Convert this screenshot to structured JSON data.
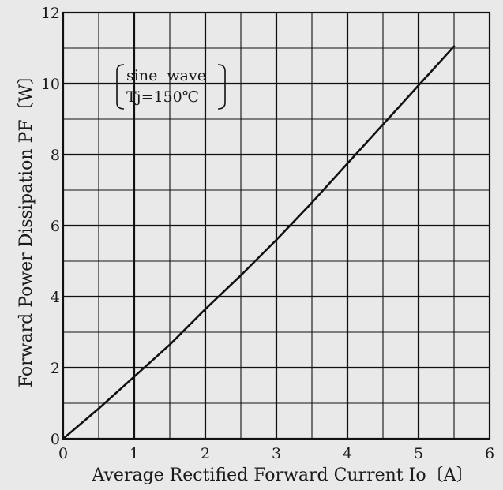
{
  "chart_data": {
    "type": "line",
    "xlabel": "Average Rectified Forward Current Io〔A〕",
    "ylabel": "Forward Power Dissipation PF〔W〕",
    "xlim": [
      0,
      6
    ],
    "ylim": [
      0,
      12
    ],
    "x_ticks": [
      "0",
      "1",
      "2",
      "3",
      "4",
      "5",
      "6"
    ],
    "y_ticks": [
      "0",
      "2",
      "4",
      "6",
      "8",
      "10",
      "12"
    ],
    "x_minor_step": 0.5,
    "y_minor_step": 1,
    "grid": true,
    "annotation": {
      "lines": [
        "sine  wave",
        "Tj=150℃"
      ],
      "placement": "top-left"
    },
    "series": [
      {
        "x": [
          0,
          0.5,
          1,
          1.5,
          2,
          2.5,
          3,
          3.5,
          4,
          4.5,
          5,
          5.5
        ],
        "y": [
          0,
          0.85,
          1.75,
          2.65,
          3.65,
          4.6,
          5.6,
          6.65,
          7.75,
          8.85,
          9.95,
          11.05
        ]
      }
    ],
    "colors": {
      "line": "#111111",
      "grid": "#111111",
      "background": "#e9e9e9"
    }
  }
}
